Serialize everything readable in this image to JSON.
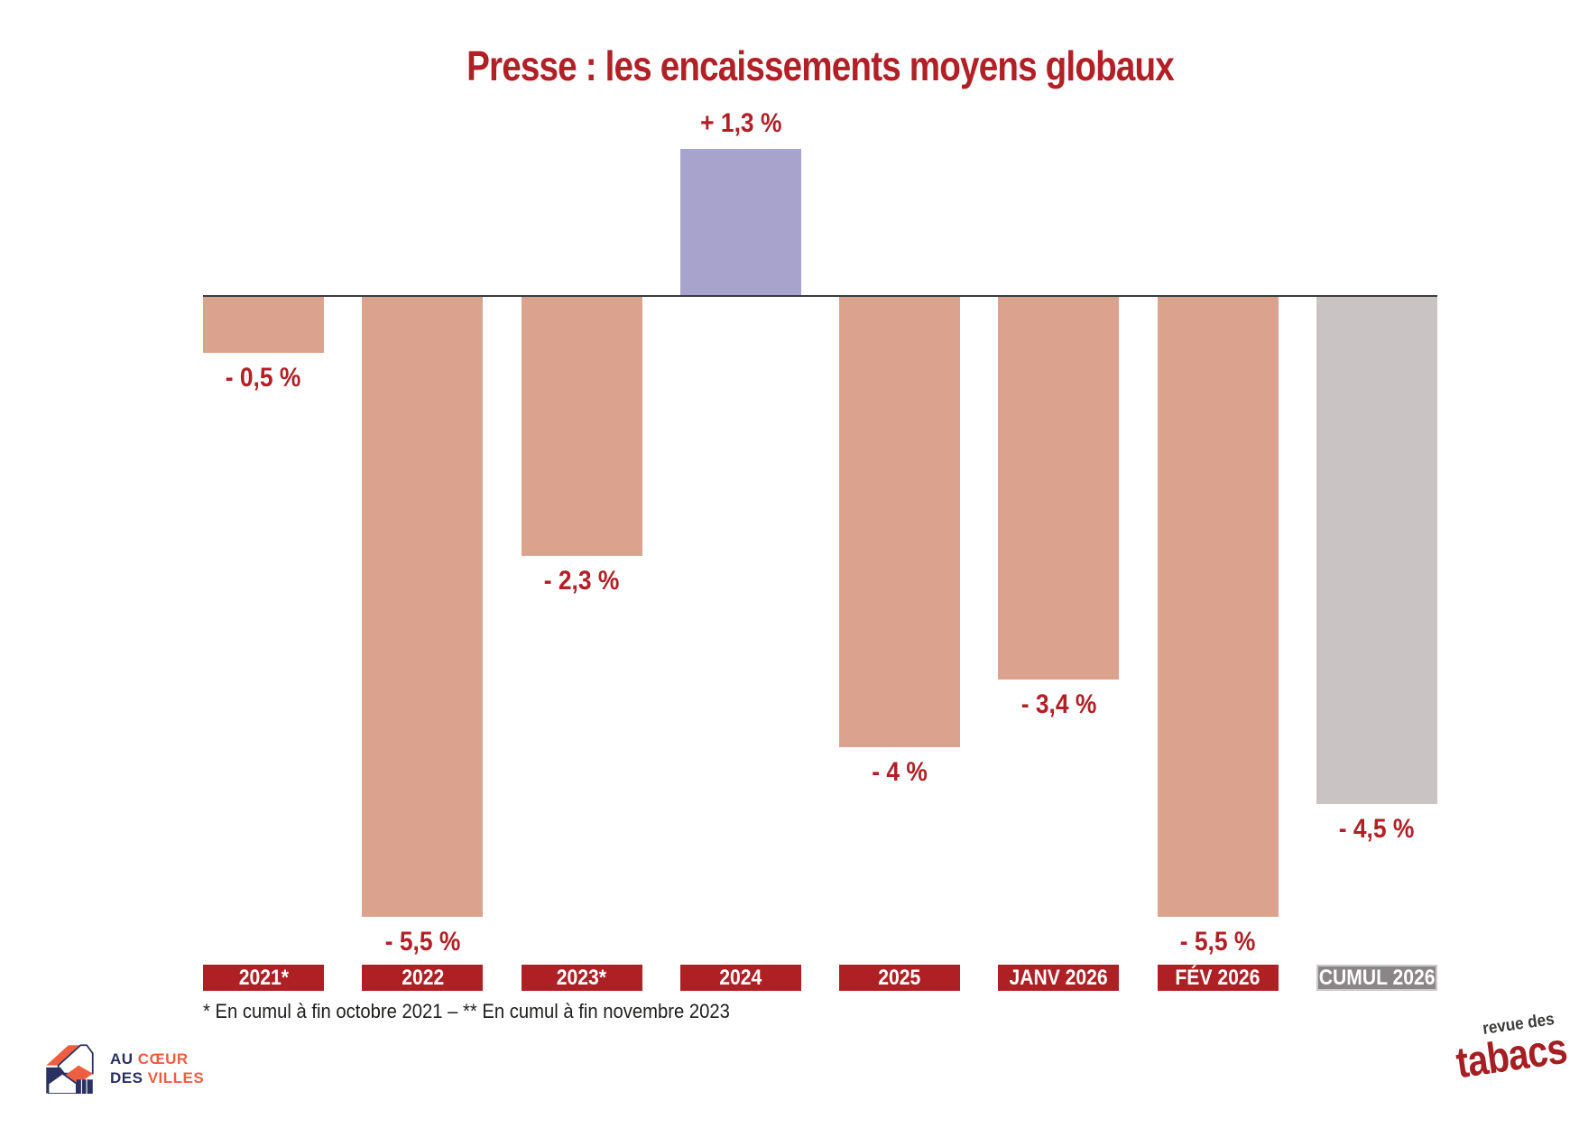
{
  "title": "Presse : les encaissements moyens globaux",
  "footnote": "* En cumul à fin octobre 2021 – ** En cumul à fin novembre 2023",
  "chart_data": {
    "type": "bar",
    "title": "Presse : les encaissements moyens globaux",
    "categories": [
      "2021*",
      "2022",
      "2023*",
      "2024",
      "2025",
      "JANV 2026",
      "FÉV 2026",
      "CUMUL 2026"
    ],
    "values": [
      -0.5,
      -5.5,
      -2.3,
      1.3,
      -4.0,
      -3.4,
      -5.5,
      -4.5
    ],
    "value_labels": [
      "- 0,5 %",
      "- 5,5 %",
      "- 2,3 %",
      "+ 1,3 %",
      "- 4 %",
      "- 3,4 %",
      "- 5,5 %",
      "- 4,5 %"
    ],
    "bar_colors": [
      "#dba38d",
      "#dba38d",
      "#dba38d",
      "#a8a3cd",
      "#dba38d",
      "#dba38d",
      "#dba38d",
      "#c9c3c4"
    ],
    "box_colors": [
      "#ae2024",
      "#ae2024",
      "#ae2024",
      "#ae2024",
      "#ae2024",
      "#ae2024",
      "#ae2024",
      "#8a8586"
    ],
    "box_borders": [
      "",
      "",
      "",
      "",
      "",
      "",
      "",
      "#ccc7c8"
    ],
    "xlabel": "",
    "ylabel": "",
    "ylim": [
      -5.5,
      1.3
    ],
    "grid": false,
    "legend_position": "none"
  },
  "colors": {
    "accent_red": "#b12026",
    "bar_negative": "#dba38d",
    "bar_positive": "#a8a3cd",
    "bar_cumul": "#c9c3c4",
    "label_box_red": "#ae2024",
    "label_box_gray": "#8a8586",
    "axis_line": "#3c3c3c"
  },
  "logo_acdv": {
    "line1_prefix": "AU",
    "line1_accent": "CŒUR",
    "line2_prefix": "DES",
    "line2_accent": "VILLES"
  },
  "logo_rdt": {
    "top": "revue des",
    "bottom": "tabacs"
  }
}
